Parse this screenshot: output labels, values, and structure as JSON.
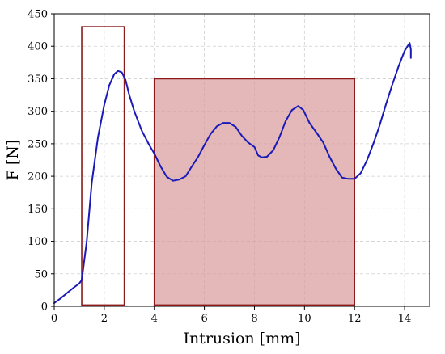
{
  "chart_data": {
    "type": "line",
    "title": "",
    "xlabel": "Intrusion [mm]",
    "ylabel": "F [N]",
    "xlim": [
      0,
      15
    ],
    "ylim": [
      0,
      450
    ],
    "xticks": [
      0,
      2,
      4,
      6,
      8,
      10,
      12,
      14
    ],
    "yticks": [
      0,
      50,
      100,
      150,
      200,
      250,
      300,
      350,
      400,
      450
    ],
    "grid": true,
    "legend": "none",
    "series": [
      {
        "color": "#1a1ab8",
        "x": [
          0,
          0.25,
          0.5,
          0.75,
          1.0,
          1.1,
          1.3,
          1.5,
          1.75,
          2.0,
          2.2,
          2.4,
          2.55,
          2.7,
          2.85,
          3.0,
          3.2,
          3.5,
          3.8,
          4.0,
          4.25,
          4.5,
          4.75,
          5.0,
          5.25,
          5.5,
          5.75,
          6.0,
          6.25,
          6.5,
          6.75,
          7.0,
          7.25,
          7.5,
          7.75,
          8.0,
          8.15,
          8.3,
          8.5,
          8.75,
          9.0,
          9.25,
          9.5,
          9.75,
          9.95,
          10.2,
          10.5,
          10.75,
          11.0,
          11.25,
          11.5,
          11.75,
          12.0,
          12.25,
          12.5,
          12.75,
          13.0,
          13.25,
          13.5,
          13.75,
          14.0,
          14.2,
          14.25,
          14.25
        ],
        "y": [
          5,
          12,
          20,
          28,
          35,
          40,
          100,
          190,
          260,
          310,
          340,
          357,
          362,
          360,
          348,
          325,
          300,
          270,
          248,
          235,
          215,
          199,
          193,
          195,
          200,
          215,
          230,
          248,
          265,
          277,
          282,
          282,
          276,
          262,
          252,
          245,
          232,
          229,
          230,
          240,
          260,
          285,
          302,
          308,
          302,
          282,
          266,
          252,
          230,
          212,
          198,
          196,
          196,
          205,
          225,
          250,
          278,
          310,
          340,
          368,
          393,
          405,
          395,
          382
        ]
      }
    ],
    "regions": [
      {
        "x0": 1.1,
        "x1": 2.8,
        "y0": 2,
        "y1": 430,
        "filled": false,
        "edge": "#8b1a1a"
      },
      {
        "x0": 4.0,
        "x1": 12.0,
        "y0": 2,
        "y1": 350,
        "filled": true,
        "fill": "#d89a9a",
        "edge": "#8b1a1a"
      }
    ]
  }
}
